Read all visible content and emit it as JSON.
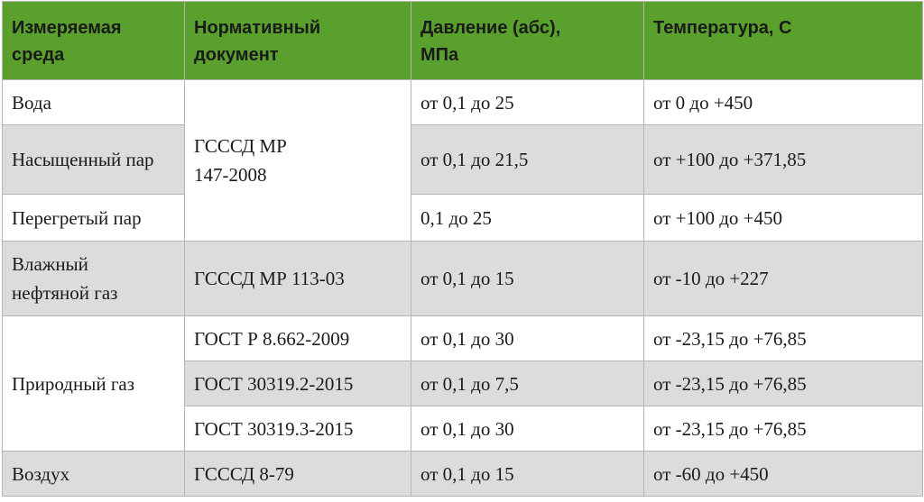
{
  "table": {
    "header": [
      "Измеряемая среда",
      "Нормативный документ",
      "Давление (абс), МПа",
      "Температура, С"
    ],
    "rows": [
      [
        "Вода",
        "ГСССД МР 147-2008",
        "от 0,1 до 25",
        "от 0 до +450"
      ],
      [
        "Насыщенный пар",
        "от 0,1 до 21,5",
        "от +100 до +371,85"
      ],
      [
        "Перегретый пар",
        "0,1 до 25",
        "от +100 до +450"
      ],
      [
        "Влажный нефтяной газ",
        "ГСССД МР 113-03",
        "от 0,1 до 15",
        "от -10 до +227"
      ],
      [
        "Природный газ",
        "ГОСТ Р 8.662-2009",
        "от 0,1 до 30",
        "от -23,15 до +76,85"
      ],
      [
        "ГОСТ 30319.2-2015",
        "от 0,1 до 7,5",
        "от -23,15 до +76,85"
      ],
      [
        "ГОСТ 30319.3-2015",
        "от 0,1 до 30",
        "от -23,15 до +76,85"
      ],
      [
        "Воздух",
        "ГСССД 8-79",
        "от 0,1 до 15",
        "от -60 до +450"
      ]
    ]
  }
}
